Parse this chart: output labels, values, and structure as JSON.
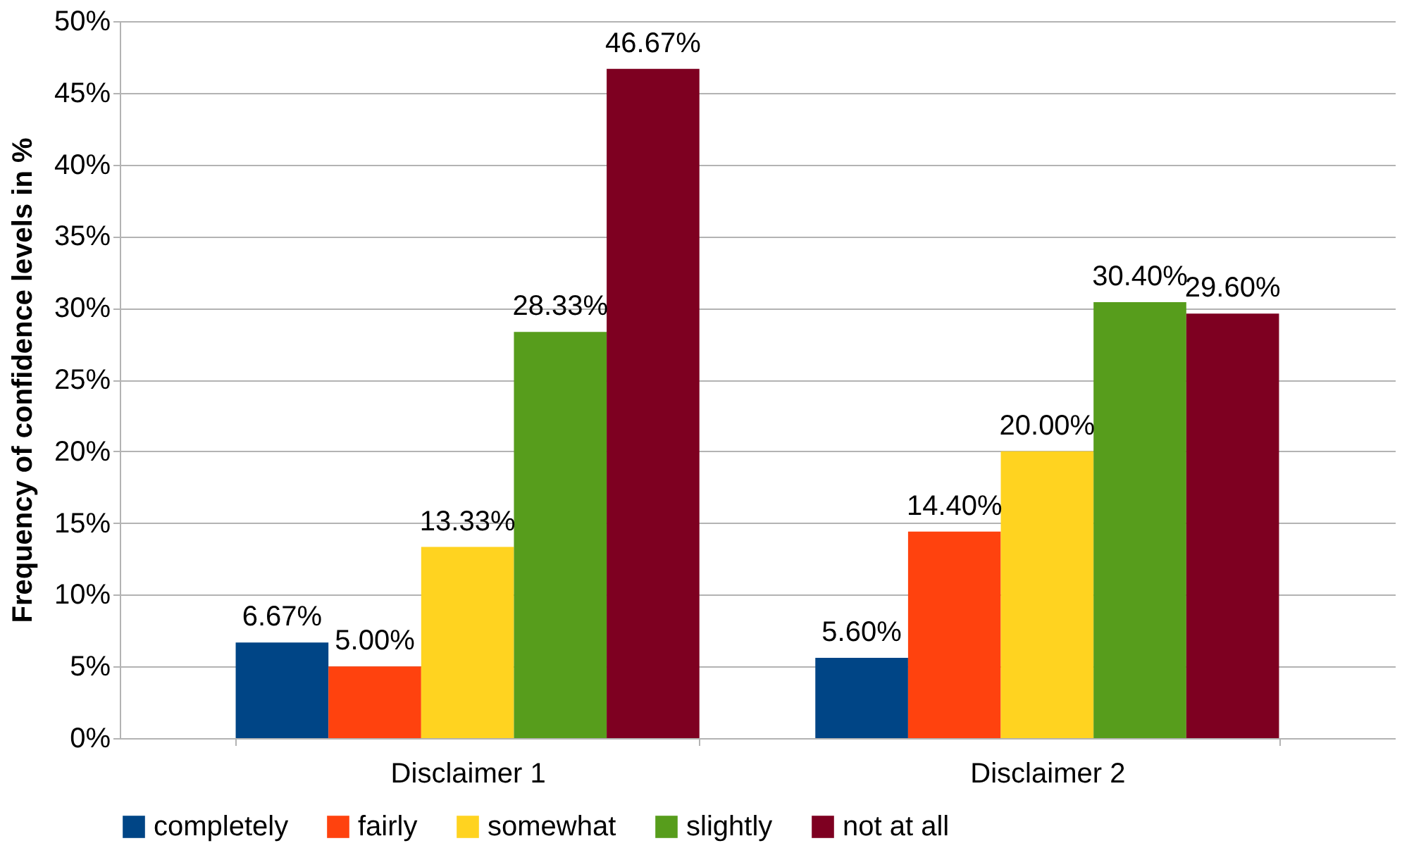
{
  "chart_data": {
    "type": "bar",
    "ylabel": "Frequency of confidence levels in %",
    "categories": [
      "Disclaimer 1",
      "Disclaimer 2"
    ],
    "series": [
      {
        "name": "completely",
        "color": "#004586",
        "values": [
          6.67,
          5.6
        ],
        "value_labels": [
          "6.67%",
          "5.60%"
        ]
      },
      {
        "name": "fairly",
        "color": "#ff420e",
        "values": [
          5.0,
          14.4
        ],
        "value_labels": [
          "5.00%",
          "14.40%"
        ]
      },
      {
        "name": "somewhat",
        "color": "#ffd320",
        "values": [
          13.33,
          20.0
        ],
        "value_labels": [
          "13.33%",
          "20.00%"
        ]
      },
      {
        "name": "slightly",
        "color": "#579d1c",
        "values": [
          28.33,
          30.4
        ],
        "value_labels": [
          "28.33%",
          "30.40%"
        ]
      },
      {
        "name": "not at all",
        "color": "#7e0021",
        "values": [
          46.67,
          29.6
        ],
        "value_labels": [
          "46.67%",
          "29.60%"
        ]
      }
    ],
    "ylim": [
      0,
      50
    ],
    "yticks": [
      {
        "value": 0,
        "label": "0%"
      },
      {
        "value": 5,
        "label": "5%"
      },
      {
        "value": 10,
        "label": "10%"
      },
      {
        "value": 15,
        "label": "15%"
      },
      {
        "value": 20,
        "label": "20%"
      },
      {
        "value": 25,
        "label": "25%"
      },
      {
        "value": 30,
        "label": "30%"
      },
      {
        "value": 35,
        "label": "35%"
      },
      {
        "value": 40,
        "label": "40%"
      },
      {
        "value": 45,
        "label": "45%"
      },
      {
        "value": 50,
        "label": "50%"
      }
    ],
    "grid": "y",
    "legend": "bottom"
  }
}
